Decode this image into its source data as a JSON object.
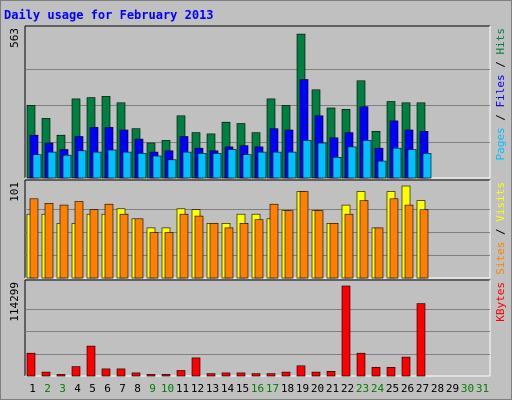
{
  "chart_data": {
    "type": "bar",
    "title": "Daily usage for February 2013",
    "days": [
      {
        "label": "1",
        "weekend": false
      },
      {
        "label": "2",
        "weekend": true
      },
      {
        "label": "3",
        "weekend": true
      },
      {
        "label": "4",
        "weekend": false
      },
      {
        "label": "5",
        "weekend": false
      },
      {
        "label": "6",
        "weekend": false
      },
      {
        "label": "7",
        "weekend": false
      },
      {
        "label": "8",
        "weekend": false
      },
      {
        "label": "9",
        "weekend": true
      },
      {
        "label": "10",
        "weekend": true
      },
      {
        "label": "11",
        "weekend": false
      },
      {
        "label": "12",
        "weekend": false
      },
      {
        "label": "13",
        "weekend": false
      },
      {
        "label": "14",
        "weekend": false
      },
      {
        "label": "15",
        "weekend": false
      },
      {
        "label": "16",
        "weekend": true
      },
      {
        "label": "17",
        "weekend": true
      },
      {
        "label": "18",
        "weekend": false
      },
      {
        "label": "19",
        "weekend": false
      },
      {
        "label": "20",
        "weekend": false
      },
      {
        "label": "21",
        "weekend": false
      },
      {
        "label": "22",
        "weekend": false
      },
      {
        "label": "23",
        "weekend": true
      },
      {
        "label": "24",
        "weekend": true
      },
      {
        "label": "25",
        "weekend": false
      },
      {
        "label": "26",
        "weekend": false
      },
      {
        "label": "27",
        "weekend": false
      },
      {
        "label": "28",
        "weekend": false
      },
      {
        "label": "29",
        "weekend": false
      },
      {
        "label": "30",
        "weekend": true
      },
      {
        "label": "31",
        "weekend": true
      }
    ],
    "panels": [
      {
        "id": "hits-files-pages",
        "max_label": "563",
        "ymax": 563,
        "legend": [
          {
            "text": "Pages",
            "color": "#00c0ff"
          },
          {
            "text": " / ",
            "color": "#000000"
          },
          {
            "text": "Files",
            "color": "#0000ff"
          },
          {
            "text": " / ",
            "color": "#000000"
          },
          {
            "text": "Hits",
            "color": "#008040"
          }
        ],
        "series": [
          {
            "name": "Hits",
            "color": "#008040",
            "offset": 0,
            "values": [
              280,
              230,
              165,
              305,
              310,
              315,
              290,
              190,
              135,
              145,
              240,
              175,
              170,
              215,
              210,
              175,
              305,
              280,
              555,
              340,
              270,
              265,
              375,
              180,
              295,
              290,
              290,
              0,
              0,
              0,
              0
            ]
          },
          {
            "name": "Files",
            "color": "#0000ff",
            "offset": 1,
            "values": [
              165,
              135,
              110,
              160,
              195,
              195,
              185,
              150,
              100,
              105,
              160,
              115,
              105,
              120,
              125,
              120,
              190,
              185,
              380,
              240,
              155,
              175,
              275,
              115,
              220,
              185,
              180,
              0,
              0,
              0,
              0
            ]
          },
          {
            "name": "Pages",
            "color": "#00c0ff",
            "offset": 2,
            "values": [
              90,
              100,
              88,
              105,
              100,
              108,
              100,
              95,
              85,
              70,
              100,
              95,
              95,
              110,
              90,
              100,
              100,
              100,
              145,
              135,
              80,
              120,
              145,
              65,
              115,
              110,
              95,
              0,
              0,
              0,
              0
            ]
          }
        ]
      },
      {
        "id": "visits-sites",
        "max_label": "101",
        "ymax": 101,
        "legend": [
          {
            "text": "Sites",
            "color": "#ff8000"
          },
          {
            "text": " / ",
            "color": "#000000"
          },
          {
            "text": "Visits",
            "color": "#ffff00"
          }
        ],
        "series": [
          {
            "name": "Visits",
            "color": "#ffff00",
            "offset": 0,
            "values": [
              70,
              70,
              60,
              60,
              70,
              70,
              76,
              65,
              55,
              55,
              76,
              75,
              60,
              60,
              70,
              70,
              65,
              74,
              95,
              74,
              60,
              80,
              95,
              55,
              95,
              101,
              85,
              0,
              0,
              0,
              0
            ]
          },
          {
            "name": "Sites",
            "color": "#ff8000",
            "offset": 1,
            "values": [
              87,
              82,
              80,
              84,
              75,
              81,
              70,
              65,
              50,
              50,
              70,
              68,
              60,
              55,
              60,
              64,
              81,
              74,
              95,
              74,
              60,
              70,
              85,
              55,
              87,
              80,
              75,
              0,
              0,
              0,
              0
            ]
          }
        ]
      },
      {
        "id": "kbytes",
        "max_label": "114299",
        "ymax": 114299,
        "legend": [
          {
            "text": "KBytes",
            "color": "#ff0000"
          }
        ],
        "series": [
          {
            "name": "KBytes",
            "color": "#ff0000",
            "offset": 0,
            "values": [
              29000,
              5000,
              2000,
              12000,
              38000,
              9000,
              9000,
              4000,
              2000,
              2000,
              7000,
              23000,
              3000,
              4000,
              4000,
              3000,
              3000,
              5000,
              13000,
              5000,
              6000,
              114299,
              29000,
              11000,
              11000,
              24000,
              92000,
              0,
              0,
              0,
              0
            ]
          }
        ]
      }
    ],
    "colors": {
      "weekday_label": "#000000",
      "weekend_label": "#008000",
      "plot_bg": "#c0c0c0"
    }
  }
}
